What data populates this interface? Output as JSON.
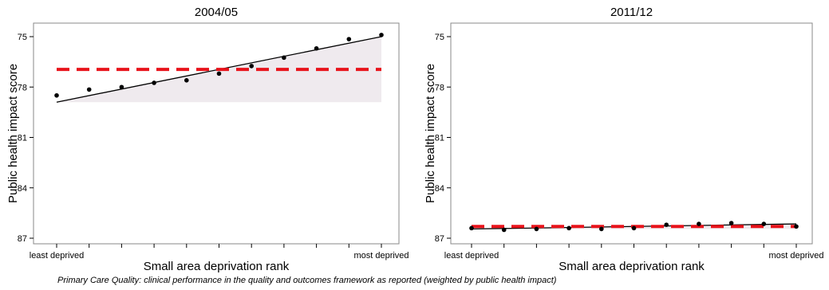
{
  "caption": "Primary Care Quality: clinical performance in the quality and outcomes framework as reported (weighted by public health impact)",
  "colors": {
    "points": "#000000",
    "trend_line": "#000000",
    "mean_line": "#e8131b",
    "shade": "#efeaee",
    "frame": "#888888"
  },
  "chart_data": [
    {
      "type": "scatter",
      "title": "2004/05",
      "xlabel": "Small area deprivation rank",
      "ylabel": "Public health impact score",
      "y_reversed": true,
      "ylim": [
        75,
        87
      ],
      "yticks": [
        75,
        78,
        81,
        84,
        87
      ],
      "x": [
        1,
        2,
        3,
        4,
        5,
        6,
        7,
        8,
        9,
        10,
        11
      ],
      "xlim": [
        1,
        11
      ],
      "xtick_labels": [
        "least deprived",
        "",
        "",
        "",
        "",
        "",
        "",
        "",
        "",
        "",
        "most deprived"
      ],
      "series": [
        {
          "values": [
            78.5,
            78.15,
            78.0,
            77.75,
            77.6,
            77.2,
            76.75,
            76.25,
            75.7,
            75.15,
            74.9
          ]
        }
      ],
      "trend_line": {
        "x": [
          1,
          11
        ],
        "y": [
          78.9,
          75.0
        ]
      },
      "mean_line": 76.95,
      "shaded_band": [
        78.9,
        75.0
      ],
      "grid": false,
      "legend": "none"
    },
    {
      "type": "scatter",
      "title": "2011/12",
      "xlabel": "Small area deprivation rank",
      "ylabel": "Public health impact score",
      "y_reversed": true,
      "ylim": [
        75,
        87
      ],
      "yticks": [
        75,
        78,
        81,
        84,
        87
      ],
      "x": [
        1,
        2,
        3,
        4,
        5,
        6,
        7,
        8,
        9,
        10,
        11
      ],
      "xlim": [
        1,
        11
      ],
      "xtick_labels": [
        "least deprived",
        "",
        "",
        "",
        "",
        "",
        "",
        "",
        "",
        "",
        "most deprived"
      ],
      "series": [
        {
          "values": [
            86.4,
            86.5,
            86.45,
            86.4,
            86.45,
            86.4,
            86.2,
            86.15,
            86.1,
            86.15,
            86.3
          ]
        }
      ],
      "trend_line": {
        "x": [
          1,
          11
        ],
        "y": [
          86.45,
          86.15
        ]
      },
      "mean_line": 86.3,
      "shaded_band": [
        86.45,
        86.15
      ],
      "grid": false,
      "legend": "none"
    }
  ]
}
